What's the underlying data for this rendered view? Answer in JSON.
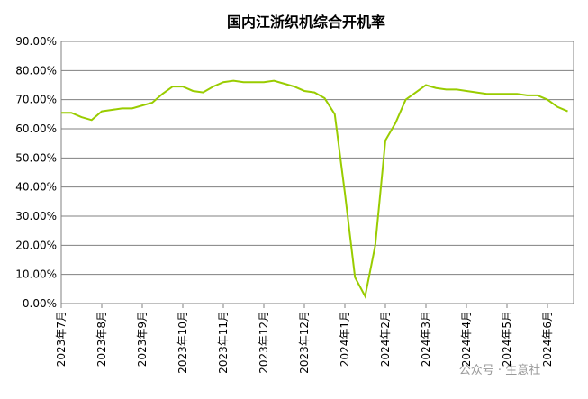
{
  "chart_data": {
    "type": "line",
    "title": "国内江浙织机综合开机率",
    "categories": [
      "2023年7月",
      null,
      null,
      null,
      "2023年8月",
      null,
      null,
      null,
      "2023年9月",
      null,
      null,
      null,
      "2023年10月",
      null,
      null,
      null,
      "2023年11月",
      null,
      null,
      null,
      "2023年12月",
      null,
      null,
      null,
      "2023年12月",
      null,
      null,
      null,
      "2024年1月",
      null,
      null,
      null,
      "2024年2月",
      null,
      null,
      null,
      "2024年3月",
      null,
      null,
      null,
      "2024年4月",
      null,
      null,
      null,
      "2024年5月",
      null,
      null,
      null,
      "2024年6月",
      null,
      null
    ],
    "series": [
      {
        "name": "开机率",
        "color": "#99cc00",
        "values": [
          65.5,
          65.5,
          64,
          63,
          66,
          66.5,
          67,
          67,
          68,
          69,
          72,
          74.5,
          74.5,
          73,
          72.5,
          74.5,
          76,
          76.5,
          76,
          76,
          76,
          76.5,
          75.5,
          74.5,
          73,
          72.5,
          70.5,
          65,
          38,
          9,
          2.5,
          20,
          56,
          62,
          70,
          72.5,
          75,
          74,
          73.5,
          73.5,
          73,
          72.5,
          72,
          72,
          72,
          72,
          71.5,
          71.5,
          70,
          67.5,
          66
        ]
      }
    ],
    "ylim": [
      0,
      90
    ],
    "yticks": [
      {
        "value": 0,
        "label": "0.00%"
      },
      {
        "value": 10,
        "label": "10.00%"
      },
      {
        "value": 20,
        "label": "20.00%"
      },
      {
        "value": 30,
        "label": "30.00%"
      },
      {
        "value": 40,
        "label": "40.00%"
      },
      {
        "value": 50,
        "label": "50.00%"
      },
      {
        "value": 60,
        "label": "60.00%"
      },
      {
        "value": 70,
        "label": "70.00%"
      },
      {
        "value": 80,
        "label": "80.00%"
      },
      {
        "value": 90,
        "label": "90.00%"
      }
    ],
    "grid": true,
    "watermark": "公众号 · 生意社"
  }
}
